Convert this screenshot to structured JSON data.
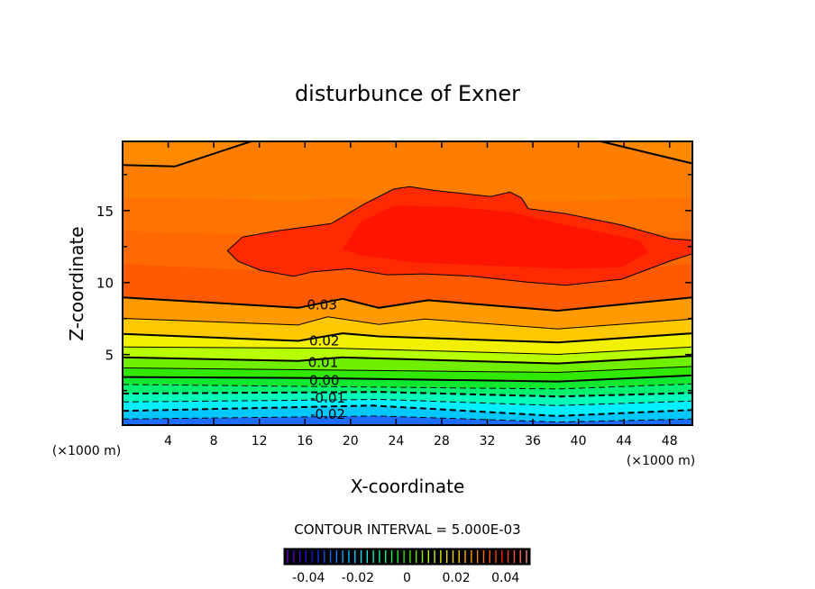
{
  "chart_data": {
    "type": "contour",
    "title": "disturbunce of Exner",
    "xlabel": "X-coordinate",
    "ylabel": "Z-coordinate",
    "x_unit_left": "(×1000 m)",
    "x_unit_right": "(×1000 m)",
    "xlim": [
      0,
      50
    ],
    "ylim": [
      0.1,
      19.8
    ],
    "xticks": [
      4,
      8,
      12,
      16,
      20,
      24,
      28,
      32,
      36,
      40,
      44,
      48
    ],
    "xtick_labels": [
      "4",
      "8",
      "12",
      "16",
      "20",
      "24",
      "28",
      "32",
      "36",
      "40",
      "44",
      "48"
    ],
    "yticks": [
      5,
      10,
      15
    ],
    "ytick_labels": [
      "5",
      "10",
      "15"
    ],
    "contour_interval_text": "CONTOUR INTERVAL = 5.000E-03",
    "bottom_color": "#1e6cff",
    "lines": [
      {
        "level": -0.025,
        "style": "dashed",
        "bold": false,
        "color_above": "#00c8ff",
        "points": [
          [
            0,
            0.52
          ],
          [
            22.5,
            0.73
          ],
          [
            38.2,
            0.31
          ],
          [
            50,
            0.52
          ]
        ]
      },
      {
        "level": -0.02,
        "style": "dashed",
        "bold": true,
        "color_above": "#00f0ff",
        "points": [
          [
            0,
            1.08
          ],
          [
            21.9,
            1.46
          ],
          [
            38.2,
            0.73
          ],
          [
            50,
            1.15
          ]
        ]
      },
      {
        "level": -0.015,
        "style": "dashed",
        "bold": false,
        "color_above": "#00ffb8",
        "points": [
          [
            0,
            1.71
          ],
          [
            22.5,
            1.88
          ],
          [
            38.2,
            1.46
          ],
          [
            50,
            1.77
          ]
        ]
      },
      {
        "level": -0.01,
        "style": "dashed",
        "bold": true,
        "color_above": "#00f070",
        "points": [
          [
            0,
            2.29
          ],
          [
            22.5,
            2.4
          ],
          [
            38.2,
            2.08
          ],
          [
            50,
            2.33
          ]
        ]
      },
      {
        "level": -0.005,
        "style": "dashed",
        "bold": false,
        "color_above": "#10e830",
        "points": [
          [
            0,
            2.92
          ],
          [
            38.2,
            2.61
          ],
          [
            50,
            2.96
          ]
        ]
      },
      {
        "level": 0.0,
        "style": "solid",
        "bold": true,
        "color_above": "#30e800",
        "points": [
          [
            0,
            3.44
          ],
          [
            15.4,
            3.38
          ],
          [
            38.2,
            3.13
          ],
          [
            50,
            3.55
          ]
        ]
      },
      {
        "level": 0.005,
        "style": "solid",
        "bold": false,
        "color_above": "#70f000",
        "points": [
          [
            0,
            4.07
          ],
          [
            38.2,
            3.76
          ],
          [
            50,
            4.17
          ]
        ]
      },
      {
        "level": 0.01,
        "style": "solid",
        "bold": true,
        "color_above": "#b8ff00",
        "points": [
          [
            0,
            4.8
          ],
          [
            15.4,
            4.55
          ],
          [
            19.3,
            4.8
          ],
          [
            38.2,
            4.38
          ],
          [
            50,
            4.9
          ]
        ]
      },
      {
        "level": 0.015,
        "style": "solid",
        "bold": false,
        "color_above": "#f0f000",
        "points": [
          [
            0,
            5.53
          ],
          [
            19.3,
            5.43
          ],
          [
            38.2,
            5.01
          ],
          [
            50,
            5.53
          ]
        ]
      },
      {
        "level": 0.02,
        "style": "solid",
        "bold": true,
        "color_above": "#ffc800",
        "points": [
          [
            0,
            6.43
          ],
          [
            15.4,
            5.95
          ],
          [
            19.3,
            6.47
          ],
          [
            22.5,
            6.26
          ],
          [
            38.2,
            5.84
          ],
          [
            50,
            6.47
          ]
        ]
      },
      {
        "level": 0.025,
        "style": "solid",
        "bold": false,
        "color_above": "#ff9a00",
        "points": [
          [
            0,
            7.51
          ],
          [
            15.4,
            7.05
          ],
          [
            18.0,
            7.62
          ],
          [
            22.5,
            7.09
          ],
          [
            26.5,
            7.47
          ],
          [
            38.2,
            6.78
          ],
          [
            50,
            7.47
          ]
        ]
      },
      {
        "level": 0.03,
        "style": "solid",
        "bold": true,
        "color_above": "#ff5a00",
        "points": [
          [
            0,
            8.97
          ],
          [
            15.4,
            8.24
          ],
          [
            19.3,
            8.87
          ],
          [
            22.5,
            8.24
          ],
          [
            26.8,
            8.77
          ],
          [
            38.2,
            8.04
          ],
          [
            50,
            8.97
          ]
        ]
      }
    ],
    "band_colors_between_upper": [
      "#ff6a00",
      "#ff7400",
      "#ff8000"
    ],
    "upper_line": {
      "level": 0.03,
      "style": "solid",
      "bold": true,
      "color_above": "#ff8a00",
      "points": [
        [
          0,
          18.16
        ],
        [
          4.6,
          18.06
        ],
        [
          11.4,
          19.83
        ]
      ],
      "points_right": [
        [
          41.8,
          19.83
        ],
        [
          50,
          18.27
        ]
      ]
    },
    "blob": {
      "level": 0.035,
      "color": "#ff2a00",
      "points": [
        [
          9.2,
          12.21
        ],
        [
          10.5,
          13.15
        ],
        [
          13.4,
          13.57
        ],
        [
          18.3,
          14.09
        ],
        [
          21.2,
          15.45
        ],
        [
          23.8,
          16.49
        ],
        [
          25.2,
          16.66
        ],
        [
          27.4,
          16.39
        ],
        [
          32.3,
          15.97
        ],
        [
          34.0,
          16.28
        ],
        [
          35.0,
          15.87
        ],
        [
          35.6,
          15.13
        ],
        [
          38.9,
          14.78
        ],
        [
          43.8,
          13.99
        ],
        [
          48.0,
          13.05
        ],
        [
          50,
          12.94
        ],
        [
          50,
          12.0
        ],
        [
          48.0,
          11.48
        ],
        [
          43.8,
          10.23
        ],
        [
          38.9,
          9.81
        ],
        [
          35.6,
          10.02
        ],
        [
          30.7,
          10.44
        ],
        [
          26.5,
          10.6
        ],
        [
          23.2,
          10.54
        ],
        [
          19.9,
          10.96
        ],
        [
          16.7,
          10.75
        ],
        [
          15.0,
          10.44
        ],
        [
          12.1,
          10.85
        ],
        [
          10.1,
          11.48
        ]
      ]
    },
    "inner_blob": {
      "color": "#ff1400",
      "points": [
        [
          19.3,
          12.3
        ],
        [
          20.9,
          14.2
        ],
        [
          23.8,
          15.34
        ],
        [
          29.1,
          15.24
        ],
        [
          34,
          14.9
        ],
        [
          38.9,
          14.0
        ],
        [
          45.4,
          12.94
        ],
        [
          46.1,
          12.1
        ],
        [
          43.8,
          11.06
        ],
        [
          38.9,
          10.96
        ],
        [
          32.3,
          11.17
        ],
        [
          25.8,
          11.38
        ],
        [
          20.9,
          11.9
        ]
      ]
    },
    "contour_labels": [
      {
        "text": "0.03",
        "x": 17.5,
        "z": 8.5
      },
      {
        "text": "0.02",
        "x": 17.7,
        "z": 6.0
      },
      {
        "text": "0.01",
        "x": 17.6,
        "z": 4.5
      },
      {
        "text": "0.00",
        "x": 17.7,
        "z": 3.25
      },
      {
        "text": "-0.01",
        "x": 18.0,
        "z": 2.05
      },
      {
        "text": "-0.02",
        "x": 18.0,
        "z": 0.9
      }
    ],
    "colorbar": {
      "range": [
        -0.05,
        0.05
      ],
      "n_stripes": 40,
      "stops": [
        "#6a00c8",
        "#1010d0",
        "#1080ff",
        "#00e0ff",
        "#00ff80",
        "#30e000",
        "#c0ff00",
        "#ffd000",
        "#ff8000",
        "#ff2000",
        "#ff8080"
      ],
      "ticks": [
        -0.04,
        -0.02,
        0,
        0.02,
        0.04
      ],
      "tick_labels": [
        "-0.04",
        "-0.02",
        "0",
        "0.02",
        "0.04"
      ]
    }
  }
}
